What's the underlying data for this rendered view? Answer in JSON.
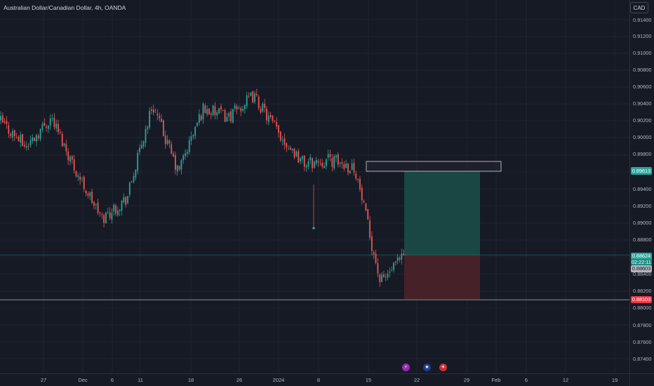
{
  "header": {
    "title": "Australian Dollar/Canadian Dollar, 4h, OANDA"
  },
  "currency_button": {
    "label": "CAD"
  },
  "price_axis": {
    "labels": [
      "0.91400",
      "0.91200",
      "0.91000",
      "0.90800",
      "0.90600",
      "0.90400",
      "0.90200",
      "0.90000",
      "0.89800",
      "0.89400",
      "0.89200",
      "0.89000",
      "0.88800",
      "0.88400",
      "0.88200",
      "0.88000",
      "0.87800",
      "0.87600",
      "0.87400"
    ]
  },
  "time_axis": {
    "labels": [
      "27",
      "Dec",
      "6",
      "11",
      "18",
      "26",
      "2024",
      "8",
      "15",
      "22",
      "29",
      "Feb",
      "6",
      "12",
      "19"
    ]
  },
  "price_tags": {
    "entry": "0.89613",
    "current": "0.88624",
    "countdown": "02:22:11",
    "marker": "0.88603",
    "stop": "0.88103"
  },
  "events": [
    {
      "name": "lightning-event-icon",
      "glyph": "⚡",
      "color": "#9c27b0"
    },
    {
      "name": "australia-flag-icon",
      "glyph": "★",
      "color": "#1e3f8a"
    },
    {
      "name": "canada-flag-icon",
      "glyph": "✦",
      "color": "#d32f2f"
    }
  ],
  "colors": {
    "background": "#161a25",
    "bull_candle": "#26a69a",
    "bear_candle": "#ef5350",
    "target_zone": "#1a4a45",
    "stop_zone": "#4a2228",
    "entry_tag": "#26a69a",
    "stop_tag": "#f23645",
    "marker_tag": "#b2b5be"
  },
  "chart_data": {
    "type": "candlestick",
    "symbol": "AUDCAD",
    "interval": "4h",
    "ylim": [
      0.8735,
      0.9153
    ],
    "approx_close_path": [
      {
        "x": "Nov 22",
        "close": 0.902
      },
      {
        "x": "Nov 25",
        "close": 0.899
      },
      {
        "x": "Nov 29",
        "close": 0.9025
      },
      {
        "x": "Dec 4",
        "close": 0.896
      },
      {
        "x": "Dec 8",
        "close": 0.8905
      },
      {
        "x": "Dec 12",
        "close": 0.893
      },
      {
        "x": "Dec 14",
        "close": 0.904
      },
      {
        "x": "Dec 18",
        "close": 0.896
      },
      {
        "x": "Dec 21",
        "close": 0.9035
      },
      {
        "x": "Dec 26",
        "close": 0.9025
      },
      {
        "x": "Dec 29",
        "close": 0.905
      },
      {
        "x": "Jan 2",
        "close": 0.9005
      },
      {
        "x": "Jan 8",
        "close": 0.897
      },
      {
        "x": "Jan 12",
        "close": 0.8975
      },
      {
        "x": "Jan 15",
        "close": 0.8965
      },
      {
        "x": "Jan 18",
        "close": 0.883
      },
      {
        "x": "Jan 19",
        "close": 0.8862
      }
    ],
    "position": {
      "type": "long",
      "entry": 0.8862,
      "target": 0.89613,
      "stop": 0.88103,
      "resistance_zone": [
        0.8961,
        0.8973
      ]
    },
    "current_price": 0.88624,
    "grid": true
  }
}
